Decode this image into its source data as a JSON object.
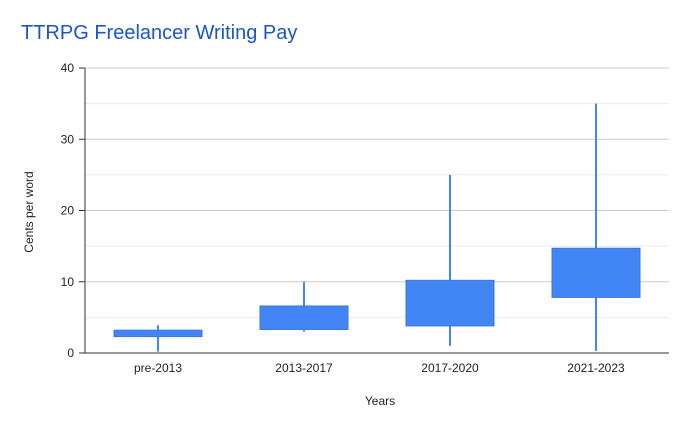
{
  "chart_data": {
    "type": "candlestick",
    "title": "TTRPG Freelancer Writing Pay",
    "xlabel": "Years",
    "ylabel": "Cents per word",
    "ylim": [
      0,
      40
    ],
    "yticks": [
      0,
      10,
      20,
      30,
      40
    ],
    "minor_gridlines": true,
    "legend": "none",
    "categories": [
      "pre-2013",
      "2013-2017",
      "2017-2020",
      "2021-2023"
    ],
    "series": [
      {
        "color": "#4285f4",
        "low": [
          0.2,
          3.0,
          1.0,
          0.3
        ],
        "box_low": [
          2.3,
          3.3,
          3.8,
          7.8
        ],
        "box_high": [
          3.2,
          6.6,
          10.2,
          14.7
        ],
        "high": [
          3.9,
          10.0,
          25.0,
          35.0
        ]
      }
    ]
  }
}
